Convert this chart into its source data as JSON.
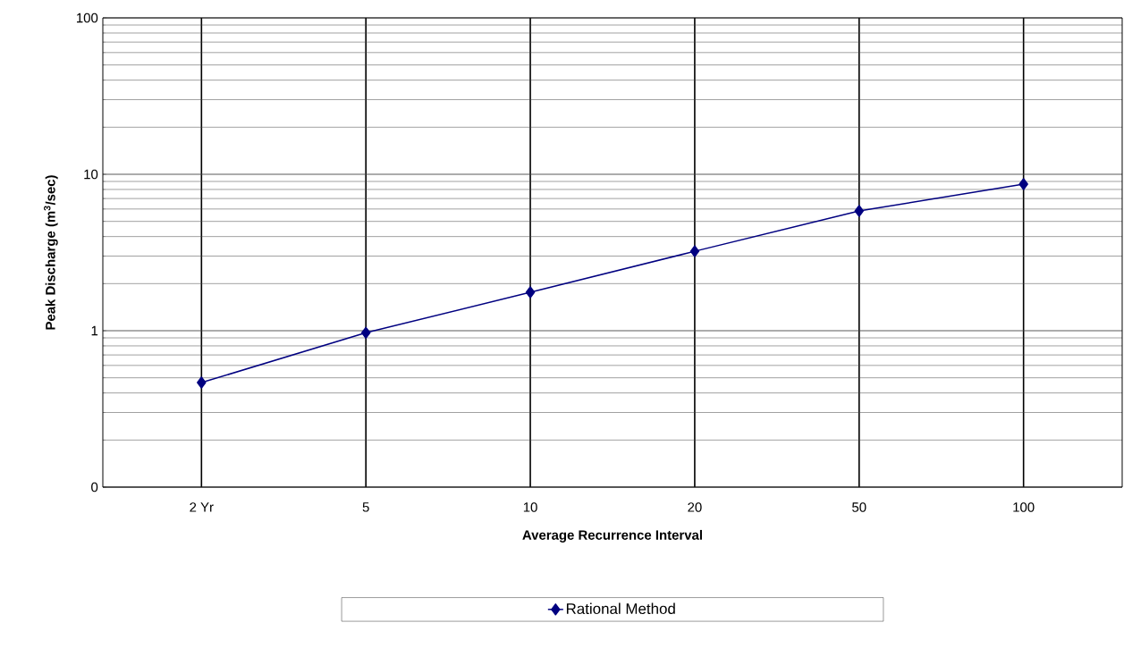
{
  "chart_data": {
    "type": "line",
    "xlabel": "Average Recurrence Interval",
    "ylabel": "Peak Discharge (m$^{3}$/sec)",
    "categories": [
      "2 Yr",
      "5",
      "10",
      "20",
      "50",
      "100"
    ],
    "series": [
      {
        "name": "Rational Method",
        "color": "#000080",
        "values": [
          0.466,
          0.97,
          1.76,
          3.22,
          5.83,
          8.65
        ]
      }
    ],
    "log": "y",
    "ylim": [
      0.1,
      100
    ],
    "yticks": [
      {
        "value": 0.1,
        "label": "0"
      },
      1,
      10,
      100
    ],
    "grid": true,
    "legend": "bottom",
    "marker": "diamond",
    "line_style": "solid"
  }
}
